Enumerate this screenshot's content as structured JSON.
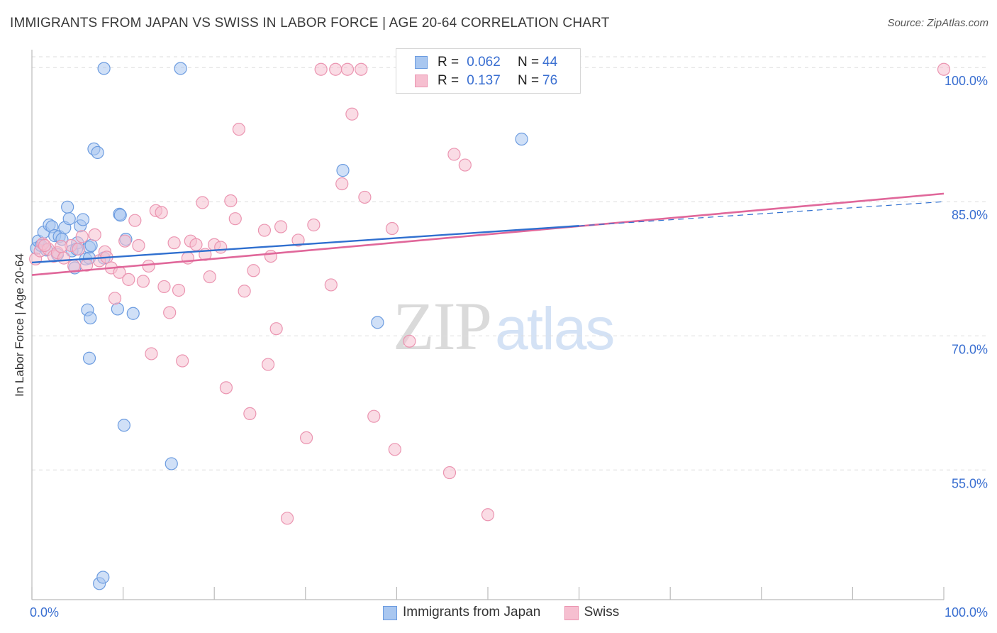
{
  "header": {
    "title": "IMMIGRANTS FROM JAPAN VS SWISS IN LABOR FORCE | AGE 20-64 CORRELATION CHART",
    "source": "Source: ZipAtlas.com"
  },
  "legend_top": [
    {
      "r_label": "R =",
      "r_value": "0.062",
      "n_label": "N =",
      "n_value": "44"
    },
    {
      "r_label": "R =",
      "r_value": "0.137",
      "n_label": "N =",
      "n_value": "76"
    }
  ],
  "legend_bottom": [
    {
      "label": "Immigrants from Japan"
    },
    {
      "label": "Swiss"
    }
  ],
  "watermark": {
    "zip": "ZIP",
    "atlas": "atlas"
  },
  "colors": {
    "japan_fill": "#a9c7f0",
    "japan_stroke": "#6c9ce0",
    "japan_line": "#2f6fcf",
    "swiss_fill": "#f6bfd0",
    "swiss_stroke": "#eb95b1",
    "swiss_line": "#e0679a",
    "tick_label": "#3a6fd1",
    "grid": "#dddddd"
  },
  "chart_data": {
    "type": "scatter",
    "title": "IMMIGRANTS FROM JAPAN VS SWISS IN LABOR FORCE | AGE 20-64 CORRELATION CHART",
    "xlabel": "",
    "ylabel": "In Labor Force | Age 20-64",
    "xlim": [
      0,
      100
    ],
    "ylim": [
      40.5,
      102
    ],
    "x_tick_labels": [
      "0.0%",
      "100.0%"
    ],
    "y_ticks": [
      55,
      70,
      85,
      100
    ],
    "y_tick_labels": [
      "55.0%",
      "70.0%",
      "85.0%",
      "100.0%"
    ],
    "grid": true,
    "series": [
      {
        "name": "Immigrants from Japan",
        "r": 0.062,
        "n": 44,
        "trend": {
          "x": [
            0,
            60,
            100
          ],
          "y": [
            78.2,
            82.3,
            85.0
          ],
          "solid_until": 60
        },
        "points": [
          [
            0.5,
            79.8
          ],
          [
            0.7,
            80.6
          ],
          [
            1.0,
            80.1
          ],
          [
            1.3,
            81.6
          ],
          [
            1.6,
            79.6
          ],
          [
            1.9,
            82.4
          ],
          [
            2.2,
            82.2
          ],
          [
            2.5,
            81.2
          ],
          [
            2.8,
            79.1
          ],
          [
            3.0,
            81.1
          ],
          [
            3.3,
            80.8
          ],
          [
            3.6,
            82.1
          ],
          [
            3.9,
            84.4
          ],
          [
            4.1,
            83.1
          ],
          [
            4.4,
            79.5
          ],
          [
            4.7,
            77.6
          ],
          [
            5.0,
            80.4
          ],
          [
            5.3,
            82.3
          ],
          [
            5.6,
            83.0
          ],
          [
            5.9,
            78.6
          ],
          [
            6.1,
            72.9
          ],
          [
            6.3,
            67.5
          ],
          [
            6.3,
            79.9
          ],
          [
            6.5,
            80.1
          ],
          [
            6.3,
            78.7
          ],
          [
            6.4,
            72.0
          ],
          [
            6.8,
            90.9
          ],
          [
            7.2,
            90.5
          ],
          [
            7.4,
            42.3
          ],
          [
            7.8,
            43.0
          ],
          [
            7.9,
            99.9
          ],
          [
            9.6,
            83.6
          ],
          [
            9.4,
            73.0
          ],
          [
            9.7,
            83.5
          ],
          [
            10.1,
            60.0
          ],
          [
            10.3,
            80.8
          ],
          [
            11.1,
            72.5
          ],
          [
            15.3,
            55.7
          ],
          [
            16.3,
            99.9
          ],
          [
            34.1,
            88.5
          ],
          [
            37.9,
            71.5
          ],
          [
            53.7,
            92.0
          ],
          [
            7.9,
            78.7
          ],
          [
            4.9,
            79.7
          ]
        ]
      },
      {
        "name": "Swiss",
        "r": 0.137,
        "n": 76,
        "trend": {
          "x": [
            0,
            100
          ],
          "y": [
            76.8,
            85.9
          ]
        },
        "points": [
          [
            0.4,
            78.6
          ],
          [
            0.9,
            79.5
          ],
          [
            1.2,
            80.3
          ],
          [
            1.8,
            79.7
          ],
          [
            2.4,
            78.9
          ],
          [
            2.8,
            79.3
          ],
          [
            3.5,
            78.7
          ],
          [
            4.3,
            80.1
          ],
          [
            4.6,
            77.8
          ],
          [
            5.1,
            79.7
          ],
          [
            5.5,
            81.1
          ],
          [
            6.0,
            77.9
          ],
          [
            6.9,
            81.3
          ],
          [
            7.4,
            78.4
          ],
          [
            8.0,
            79.4
          ],
          [
            8.2,
            78.8
          ],
          [
            8.7,
            77.6
          ],
          [
            9.1,
            74.2
          ],
          [
            9.6,
            77.1
          ],
          [
            10.2,
            80.6
          ],
          [
            10.6,
            76.3
          ],
          [
            11.3,
            82.9
          ],
          [
            11.7,
            80.1
          ],
          [
            12.2,
            76.1
          ],
          [
            12.8,
            77.8
          ],
          [
            13.1,
            68.0
          ],
          [
            13.6,
            84.0
          ],
          [
            14.2,
            83.8
          ],
          [
            14.5,
            75.5
          ],
          [
            15.1,
            72.6
          ],
          [
            15.6,
            80.4
          ],
          [
            16.1,
            75.1
          ],
          [
            16.5,
            67.2
          ],
          [
            17.1,
            78.7
          ],
          [
            17.4,
            80.6
          ],
          [
            18.0,
            80.2
          ],
          [
            18.7,
            84.9
          ],
          [
            19.0,
            79.1
          ],
          [
            19.5,
            76.6
          ],
          [
            20.0,
            80.2
          ],
          [
            20.7,
            79.9
          ],
          [
            21.3,
            64.2
          ],
          [
            21.8,
            85.1
          ],
          [
            22.3,
            83.1
          ],
          [
            22.7,
            93.1
          ],
          [
            23.3,
            75.0
          ],
          [
            23.9,
            61.3
          ],
          [
            24.3,
            77.3
          ],
          [
            25.5,
            81.8
          ],
          [
            25.9,
            66.8
          ],
          [
            26.2,
            78.9
          ],
          [
            26.8,
            70.8
          ],
          [
            27.3,
            82.2
          ],
          [
            28.0,
            49.6
          ],
          [
            29.2,
            80.7
          ],
          [
            30.1,
            58.6
          ],
          [
            30.9,
            82.4
          ],
          [
            31.7,
            99.8
          ],
          [
            32.8,
            75.7
          ],
          [
            33.3,
            99.8
          ],
          [
            34.0,
            87.0
          ],
          [
            34.6,
            99.8
          ],
          [
            35.1,
            94.8
          ],
          [
            36.1,
            99.8
          ],
          [
            36.5,
            85.5
          ],
          [
            37.5,
            61.0
          ],
          [
            39.5,
            82.0
          ],
          [
            39.8,
            57.3
          ],
          [
            41.4,
            69.4
          ],
          [
            45.8,
            54.7
          ],
          [
            46.3,
            90.3
          ],
          [
            47.5,
            89.1
          ],
          [
            50.0,
            50.0
          ],
          [
            100.0,
            99.8
          ],
          [
            1.4,
            80.1
          ],
          [
            3.2,
            80.0
          ]
        ]
      }
    ]
  }
}
